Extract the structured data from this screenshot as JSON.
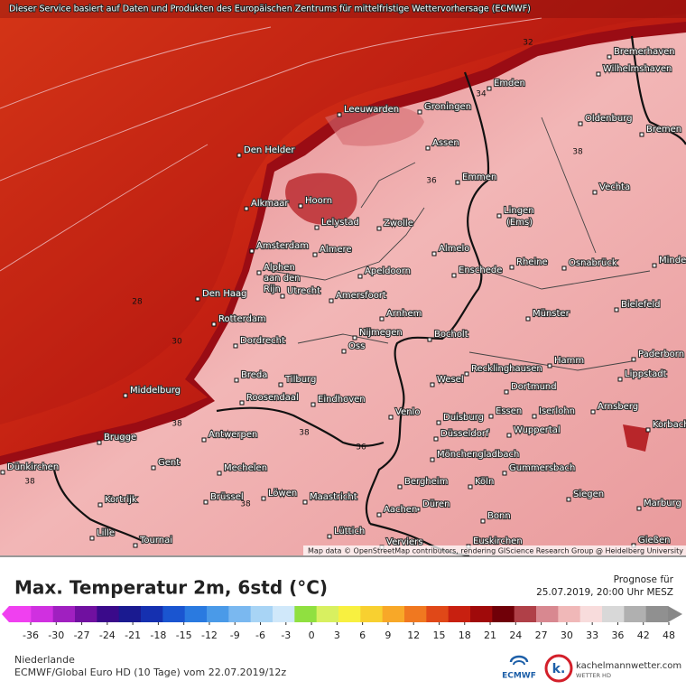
{
  "banner": "Dieser Service basiert auf Daten und Produkten des Europäischen Zentrums für mittelfristige Wettervorhersage (ECMWF)",
  "map": {
    "cities": [
      "Bremerhaven",
      "Wilhelmshaven",
      "Emden",
      "Leeuwarden",
      "Groningen",
      "Oldenburg",
      "Bremen",
      "Den Helder",
      "Assen",
      "Emmen",
      "Vechta",
      "Alkmaar",
      "Hoorn",
      "Lelystad",
      "Zwolle",
      "Lingen",
      "(Ems)",
      "Amsterdam",
      "Almere",
      "Almelo",
      "Rheine",
      "Osnabrück",
      "Minden",
      "Alphen",
      "aan den",
      "Rijn",
      "Apeldoorn",
      "Enschede",
      "Utrecht",
      "Den Haag",
      "Amersfoort",
      "Bielefeld",
      "Arnhem",
      "Münster",
      "Rotterdam",
      "Nijmegen",
      "Bocholt",
      "Dordrecht",
      "Oss",
      "Paderborn",
      "Hamm",
      "Recklinghausen",
      "Lippstadt",
      "Breda",
      "Tilburg",
      "Wesel",
      "Dortmund",
      "Middelburg",
      "Roosendaal",
      "Eindhoven",
      "Arnsberg",
      "Venlo",
      "Essen",
      "Iserlohn",
      "Duisburg",
      "Korbach",
      "Wuppertal",
      "Antwerpen",
      "Brugge",
      "Düsseldorf",
      "Mönchengladbach",
      "Gent",
      "Dünkirchen",
      "Mechelen",
      "Gummersbach",
      "Bergheim",
      "Köln",
      "Brüssel",
      "Löwen",
      "Maastricht",
      "Siegen",
      "Kortrijk",
      "Düren",
      "Marburg",
      "Aachen",
      "Bonn",
      "Lille",
      "Lüttich",
      "Tournai",
      "Verviers",
      "Euskirchen",
      "Gießen"
    ],
    "contour_labels": [
      "32",
      "34",
      "38",
      "36",
      "28",
      "30",
      "38",
      "38",
      "36",
      "38",
      "38"
    ],
    "attribution": "Map data © OpenStreetMap contributors, rendering GIScience Research Group @ Heidelberg University"
  },
  "footer": {
    "title": "Max. Temperatur 2m, 6std (°C)",
    "forecast_label": "Prognose für",
    "forecast_time": "25.07.2019, 20:00 Uhr MESZ",
    "colorbar": {
      "ticks": [
        -36,
        -30,
        -27,
        -24,
        -21,
        -18,
        -15,
        -12,
        -9,
        -6,
        -3,
        0,
        3,
        6,
        9,
        12,
        15,
        18,
        21,
        24,
        27,
        30,
        33,
        36,
        42,
        48
      ]
    },
    "region": "Niederlande",
    "model_info": "ECMWF/Global Euro HD (10 Tage) vom 22.07.2019/12z",
    "logos": {
      "ecmwf": "ECMWF",
      "site": "kachelmannwetter.com",
      "site_tagline": "WETTER HD"
    }
  }
}
